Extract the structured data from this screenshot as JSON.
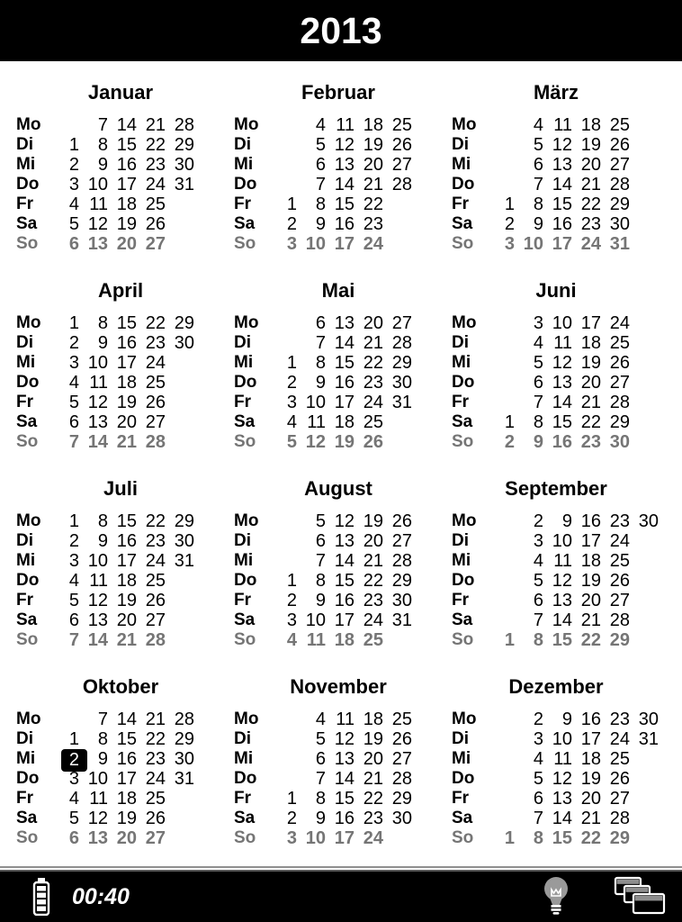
{
  "header": {
    "title": "2013"
  },
  "calendar": {
    "day_labels": [
      "Mo",
      "Di",
      "Mi",
      "Do",
      "Fr",
      "Sa",
      "So"
    ],
    "sunday_index": 6,
    "months": [
      {
        "name": "Januar",
        "rows": [
          [
            "",
            "7",
            "14",
            "21",
            "28",
            ""
          ],
          [
            "1",
            "8",
            "15",
            "22",
            "29",
            ""
          ],
          [
            "2",
            "9",
            "16",
            "23",
            "30",
            ""
          ],
          [
            "3",
            "10",
            "17",
            "24",
            "31",
            ""
          ],
          [
            "4",
            "11",
            "18",
            "25",
            "",
            ""
          ],
          [
            "5",
            "12",
            "19",
            "26",
            "",
            ""
          ],
          [
            "6",
            "13",
            "20",
            "27",
            "",
            ""
          ]
        ]
      },
      {
        "name": "Februar",
        "rows": [
          [
            "",
            "4",
            "11",
            "18",
            "25",
            ""
          ],
          [
            "",
            "5",
            "12",
            "19",
            "26",
            ""
          ],
          [
            "",
            "6",
            "13",
            "20",
            "27",
            ""
          ],
          [
            "",
            "7",
            "14",
            "21",
            "28",
            ""
          ],
          [
            "1",
            "8",
            "15",
            "22",
            "",
            ""
          ],
          [
            "2",
            "9",
            "16",
            "23",
            "",
            ""
          ],
          [
            "3",
            "10",
            "17",
            "24",
            "",
            ""
          ]
        ]
      },
      {
        "name": "März",
        "rows": [
          [
            "",
            "4",
            "11",
            "18",
            "25",
            ""
          ],
          [
            "",
            "5",
            "12",
            "19",
            "26",
            ""
          ],
          [
            "",
            "6",
            "13",
            "20",
            "27",
            ""
          ],
          [
            "",
            "7",
            "14",
            "21",
            "28",
            ""
          ],
          [
            "1",
            "8",
            "15",
            "22",
            "29",
            ""
          ],
          [
            "2",
            "9",
            "16",
            "23",
            "30",
            ""
          ],
          [
            "3",
            "10",
            "17",
            "24",
            "31",
            ""
          ]
        ]
      },
      {
        "name": "April",
        "rows": [
          [
            "1",
            "8",
            "15",
            "22",
            "29",
            ""
          ],
          [
            "2",
            "9",
            "16",
            "23",
            "30",
            ""
          ],
          [
            "3",
            "10",
            "17",
            "24",
            "",
            ""
          ],
          [
            "4",
            "11",
            "18",
            "25",
            "",
            ""
          ],
          [
            "5",
            "12",
            "19",
            "26",
            "",
            ""
          ],
          [
            "6",
            "13",
            "20",
            "27",
            "",
            ""
          ],
          [
            "7",
            "14",
            "21",
            "28",
            "",
            ""
          ]
        ]
      },
      {
        "name": "Mai",
        "rows": [
          [
            "",
            "6",
            "13",
            "20",
            "27",
            ""
          ],
          [
            "",
            "7",
            "14",
            "21",
            "28",
            ""
          ],
          [
            "1",
            "8",
            "15",
            "22",
            "29",
            ""
          ],
          [
            "2",
            "9",
            "16",
            "23",
            "30",
            ""
          ],
          [
            "3",
            "10",
            "17",
            "24",
            "31",
            ""
          ],
          [
            "4",
            "11",
            "18",
            "25",
            "",
            ""
          ],
          [
            "5",
            "12",
            "19",
            "26",
            "",
            ""
          ]
        ]
      },
      {
        "name": "Juni",
        "rows": [
          [
            "",
            "3",
            "10",
            "17",
            "24",
            ""
          ],
          [
            "",
            "4",
            "11",
            "18",
            "25",
            ""
          ],
          [
            "",
            "5",
            "12",
            "19",
            "26",
            ""
          ],
          [
            "",
            "6",
            "13",
            "20",
            "27",
            ""
          ],
          [
            "",
            "7",
            "14",
            "21",
            "28",
            ""
          ],
          [
            "1",
            "8",
            "15",
            "22",
            "29",
            ""
          ],
          [
            "2",
            "9",
            "16",
            "23",
            "30",
            ""
          ]
        ]
      },
      {
        "name": "Juli",
        "rows": [
          [
            "1",
            "8",
            "15",
            "22",
            "29",
            ""
          ],
          [
            "2",
            "9",
            "16",
            "23",
            "30",
            ""
          ],
          [
            "3",
            "10",
            "17",
            "24",
            "31",
            ""
          ],
          [
            "4",
            "11",
            "18",
            "25",
            "",
            ""
          ],
          [
            "5",
            "12",
            "19",
            "26",
            "",
            ""
          ],
          [
            "6",
            "13",
            "20",
            "27",
            "",
            ""
          ],
          [
            "7",
            "14",
            "21",
            "28",
            "",
            ""
          ]
        ]
      },
      {
        "name": "August",
        "rows": [
          [
            "",
            "5",
            "12",
            "19",
            "26",
            ""
          ],
          [
            "",
            "6",
            "13",
            "20",
            "27",
            ""
          ],
          [
            "",
            "7",
            "14",
            "21",
            "28",
            ""
          ],
          [
            "1",
            "8",
            "15",
            "22",
            "29",
            ""
          ],
          [
            "2",
            "9",
            "16",
            "23",
            "30",
            ""
          ],
          [
            "3",
            "10",
            "17",
            "24",
            "31",
            ""
          ],
          [
            "4",
            "11",
            "18",
            "25",
            "",
            ""
          ]
        ]
      },
      {
        "name": "September",
        "rows": [
          [
            "",
            "2",
            "9",
            "16",
            "23",
            "30"
          ],
          [
            "",
            "3",
            "10",
            "17",
            "24",
            ""
          ],
          [
            "",
            "4",
            "11",
            "18",
            "25",
            ""
          ],
          [
            "",
            "5",
            "12",
            "19",
            "26",
            ""
          ],
          [
            "",
            "6",
            "13",
            "20",
            "27",
            ""
          ],
          [
            "",
            "7",
            "14",
            "21",
            "28",
            ""
          ],
          [
            "1",
            "8",
            "15",
            "22",
            "29",
            ""
          ]
        ]
      },
      {
        "name": "Oktober",
        "rows": [
          [
            "",
            "7",
            "14",
            "21",
            "28",
            ""
          ],
          [
            "1",
            "8",
            "15",
            "22",
            "29",
            ""
          ],
          [
            "2",
            "9",
            "16",
            "23",
            "30",
            ""
          ],
          [
            "3",
            "10",
            "17",
            "24",
            "31",
            ""
          ],
          [
            "4",
            "11",
            "18",
            "25",
            "",
            ""
          ],
          [
            "5",
            "12",
            "19",
            "26",
            "",
            ""
          ],
          [
            "6",
            "13",
            "20",
            "27",
            "",
            ""
          ]
        ]
      },
      {
        "name": "November",
        "rows": [
          [
            "",
            "4",
            "11",
            "18",
            "25",
            ""
          ],
          [
            "",
            "5",
            "12",
            "19",
            "26",
            ""
          ],
          [
            "",
            "6",
            "13",
            "20",
            "27",
            ""
          ],
          [
            "",
            "7",
            "14",
            "21",
            "28",
            ""
          ],
          [
            "1",
            "8",
            "15",
            "22",
            "29",
            ""
          ],
          [
            "2",
            "9",
            "16",
            "23",
            "30",
            ""
          ],
          [
            "3",
            "10",
            "17",
            "24",
            "",
            ""
          ]
        ]
      },
      {
        "name": "Dezember",
        "rows": [
          [
            "",
            "2",
            "9",
            "16",
            "23",
            "30"
          ],
          [
            "",
            "3",
            "10",
            "17",
            "24",
            "31"
          ],
          [
            "",
            "4",
            "11",
            "18",
            "25",
            ""
          ],
          [
            "",
            "5",
            "12",
            "19",
            "26",
            ""
          ],
          [
            "",
            "6",
            "13",
            "20",
            "27",
            ""
          ],
          [
            "",
            "7",
            "14",
            "21",
            "28",
            ""
          ],
          [
            "1",
            "8",
            "15",
            "22",
            "29",
            ""
          ]
        ]
      }
    ],
    "today": {
      "month": "Oktober",
      "row_index": 2,
      "col_index": 0,
      "date": "2"
    }
  },
  "statusbar": {
    "time": "00:40",
    "battery_icon": "battery-icon",
    "light_icon": "lightbulb-icon",
    "windows_icon": "cascade-windows-icon"
  },
  "colors": {
    "bar_bg": "#000000",
    "sunday_gray": "#757575",
    "highlight_bg": "#000000",
    "highlight_text": "#ffffff",
    "bulb_gray": "#9a9a9a",
    "titlebar_gray": "#8e8e8e"
  }
}
